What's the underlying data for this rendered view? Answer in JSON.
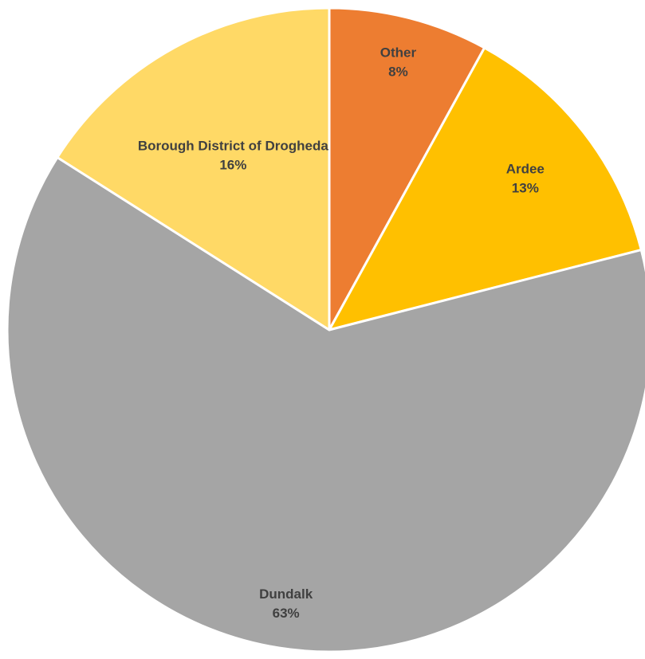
{
  "chart_data": {
    "type": "pie",
    "title": "",
    "start_angle_deg": 0,
    "direction": "clockwise",
    "slices": [
      {
        "label": "Other",
        "value": 8,
        "percent_label": "8%",
        "color": "#ED7D31"
      },
      {
        "label": "Ardee",
        "value": 13,
        "percent_label": "13%",
        "color": "#FFC000"
      },
      {
        "label": "Dundalk",
        "value": 63,
        "percent_label": "63%",
        "color": "#A5A5A5"
      },
      {
        "label": "Borough District of Drogheda",
        "value": 16,
        "percent_label": "16%",
        "color": "#FFD966"
      }
    ],
    "legend": "none",
    "data_labels": "category name and percentage"
  }
}
